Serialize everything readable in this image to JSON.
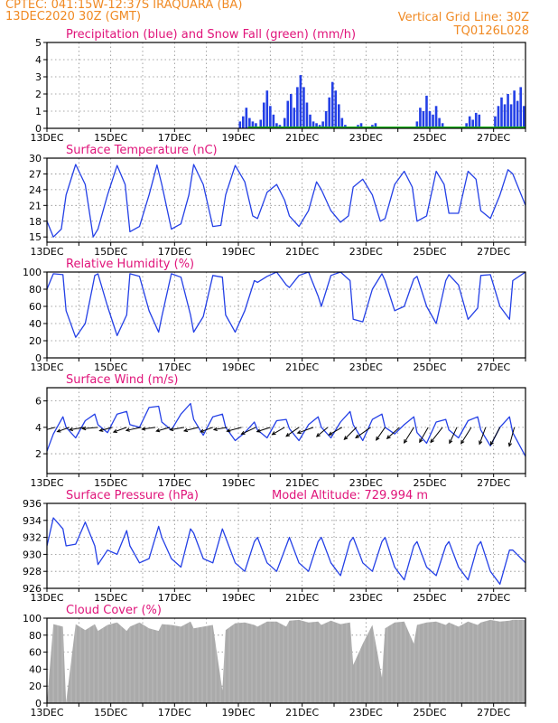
{
  "header": {
    "line1": "CPTEC:   041:15W-12:37S  IRAQUARA (BA)",
    "line2": "13DEC2020 30Z (GMT)",
    "grid_note": "Vertical Grid Line: 30Z",
    "model_id": "TQ0126L028"
  },
  "colors": {
    "header": "#f08a24",
    "title": "#e0147a",
    "line": "#2440e6",
    "snow": "#18b418",
    "cloud": "#aaaaaa",
    "grid": "#8a8a8a"
  },
  "chart_data": [
    {
      "type": "bar",
      "title": "Precipitation (blue) and Snow Fall (green) (mm/h)",
      "ylim": [
        0,
        5
      ],
      "yticks": [
        "0",
        "1",
        "2",
        "3",
        "4",
        "5"
      ],
      "x_ticks": [
        "13DEC",
        "15DEC",
        "17DEC",
        "19DEC",
        "21DEC",
        "23DEC",
        "25DEC",
        "27DEC"
      ],
      "x_range_days": [
        0,
        15
      ],
      "series": [
        {
          "name": "Precipitation",
          "color": "#2440e6",
          "x": [
            6.05,
            6.15,
            6.25,
            6.35,
            6.45,
            6.55,
            6.7,
            6.8,
            6.9,
            7.0,
            7.1,
            7.2,
            7.3,
            7.45,
            7.55,
            7.65,
            7.75,
            7.85,
            7.95,
            8.05,
            8.15,
            8.25,
            8.35,
            8.45,
            8.55,
            8.65,
            8.75,
            8.85,
            8.95,
            9.05,
            9.15,
            9.25,
            9.35,
            9.45,
            9.55,
            9.65,
            9.75,
            9.85,
            10.2,
            10.3,
            11.6,
            11.7,
            11.8,
            11.9,
            12.0,
            12.1,
            12.2,
            12.3,
            12.4,
            13.15,
            13.25,
            13.35,
            13.45,
            13.55,
            14.05,
            14.15,
            14.25,
            14.35,
            14.45,
            14.55,
            14.65,
            14.75,
            14.85,
            14.95
          ],
          "values": [
            0.4,
            0.7,
            1.2,
            0.6,
            0.4,
            0.3,
            0.5,
            1.5,
            2.2,
            1.3,
            0.8,
            0.3,
            0.2,
            0.6,
            1.6,
            2.0,
            1.2,
            2.4,
            3.1,
            2.4,
            1.5,
            0.8,
            0.4,
            0.3,
            0.2,
            0.4,
            1.0,
            1.8,
            2.7,
            2.2,
            1.4,
            0.6,
            0.2,
            0.1,
            0.1,
            0.1,
            0.2,
            0.3,
            0.2,
            0.3,
            0.4,
            1.2,
            1.0,
            1.9,
            1.0,
            0.8,
            1.3,
            0.6,
            0.3,
            0.3,
            0.7,
            0.5,
            0.9,
            0.8,
            0.7,
            1.3,
            1.8,
            1.4,
            2.0,
            1.4,
            2.2,
            1.6,
            2.4,
            1.3
          ]
        },
        {
          "name": "Snow Fall",
          "color": "#18b418",
          "x": [],
          "values": []
        }
      ]
    },
    {
      "type": "line",
      "title": "Surface Temperature (nC)",
      "ylim": [
        14,
        30
      ],
      "yticks": [
        "15",
        "18",
        "21",
        "24",
        "27",
        "30"
      ],
      "x_ticks": [
        "13DEC",
        "15DEC",
        "17DEC",
        "19DEC",
        "21DEC",
        "23DEC",
        "25DEC",
        "27DEC"
      ],
      "x_range_days": [
        0,
        15
      ],
      "series": [
        {
          "name": "Temperature",
          "x": [
            0.0,
            0.2,
            0.45,
            0.6,
            0.9,
            1.2,
            1.45,
            1.6,
            1.9,
            2.2,
            2.45,
            2.6,
            2.9,
            3.2,
            3.45,
            3.6,
            3.9,
            4.2,
            4.45,
            4.6,
            4.9,
            5.2,
            5.45,
            5.6,
            5.9,
            6.2,
            6.45,
            6.6,
            6.9,
            7.2,
            7.45,
            7.6,
            7.9,
            8.2,
            8.45,
            8.6,
            8.9,
            9.2,
            9.45,
            9.6,
            9.9,
            10.2,
            10.45,
            10.6,
            10.9,
            11.2,
            11.45,
            11.6,
            11.9,
            12.2,
            12.45,
            12.6,
            12.9,
            13.2,
            13.45,
            13.6,
            13.9,
            14.2,
            14.45,
            14.6,
            15.0
          ],
          "values": [
            18.0,
            15.0,
            16.5,
            23.0,
            28.8,
            25.0,
            15.0,
            16.5,
            23.0,
            28.6,
            25.0,
            16.0,
            17.0,
            23.0,
            28.7,
            25.0,
            16.5,
            17.5,
            23.0,
            28.8,
            25.0,
            17.0,
            17.2,
            23.0,
            28.6,
            25.5,
            19.0,
            18.5,
            23.5,
            25.0,
            22.0,
            19.0,
            17.0,
            20.0,
            25.5,
            24.0,
            20.0,
            17.8,
            19.0,
            24.5,
            26.0,
            23.0,
            18.0,
            18.5,
            25.0,
            27.5,
            24.5,
            18.0,
            19.0,
            27.5,
            25.0,
            19.5,
            19.5,
            27.5,
            26.0,
            20.0,
            18.5,
            23.0,
            27.8,
            27.0,
            21.0
          ]
        }
      ]
    },
    {
      "type": "line",
      "title": "Relative Humidity (%)",
      "ylim": [
        0,
        100
      ],
      "yticks": [
        "0",
        "20",
        "40",
        "60",
        "80",
        "100"
      ],
      "x_ticks": [
        "13DEC",
        "15DEC",
        "17DEC",
        "19DEC",
        "21DEC",
        "23DEC",
        "25DEC",
        "27DEC"
      ],
      "x_range_days": [
        0,
        15
      ],
      "series": [
        {
          "name": "Humidity",
          "x": [
            0.0,
            0.2,
            0.5,
            0.6,
            0.9,
            1.2,
            1.5,
            1.6,
            1.9,
            2.2,
            2.5,
            2.6,
            2.9,
            3.2,
            3.5,
            3.6,
            3.9,
            4.2,
            4.5,
            4.6,
            4.9,
            5.2,
            5.5,
            5.6,
            5.9,
            6.2,
            6.5,
            6.6,
            6.9,
            7.2,
            7.5,
            7.6,
            7.9,
            8.2,
            8.5,
            8.6,
            8.9,
            9.2,
            9.5,
            9.6,
            9.9,
            10.2,
            10.5,
            10.6,
            10.9,
            11.2,
            11.5,
            11.6,
            11.9,
            12.2,
            12.5,
            12.6,
            12.9,
            13.2,
            13.5,
            13.6,
            13.9,
            14.2,
            14.5,
            14.6,
            15.0
          ],
          "values": [
            80.0,
            98.0,
            97.0,
            55.0,
            24.0,
            40.0,
            96.0,
            98.0,
            60.0,
            26.0,
            50.0,
            98.0,
            95.0,
            55.0,
            30.0,
            48.0,
            98.0,
            94.0,
            50.0,
            30.0,
            48.0,
            96.0,
            94.0,
            50.0,
            30.0,
            55.0,
            90.0,
            88.0,
            95.0,
            100.0,
            85.0,
            82.0,
            96.0,
            100.0,
            72.0,
            60.0,
            96.0,
            100.0,
            90.0,
            45.0,
            42.0,
            80.0,
            98.0,
            90.0,
            55.0,
            60.0,
            92.0,
            95.0,
            60.0,
            40.0,
            90.0,
            97.0,
            85.0,
            45.0,
            58.0,
            96.0,
            97.0,
            60.0,
            45.0,
            90.0,
            100.0
          ]
        }
      ]
    },
    {
      "type": "line",
      "title": "Surface Wind (m/s)",
      "ylim": [
        0.5,
        7
      ],
      "yticks": [
        "2",
        "4",
        "6"
      ],
      "x_ticks": [
        "13DEC",
        "15DEC",
        "17DEC",
        "19DEC",
        "21DEC",
        "23DEC",
        "25DEC",
        "27DEC"
      ],
      "x_range_days": [
        0,
        15
      ],
      "series": [
        {
          "name": "Wind speed",
          "x": [
            0.0,
            0.2,
            0.5,
            0.6,
            0.9,
            1.2,
            1.5,
            1.6,
            1.9,
            2.2,
            2.5,
            2.6,
            2.9,
            3.2,
            3.5,
            3.6,
            3.9,
            4.2,
            4.5,
            4.6,
            4.9,
            5.2,
            5.5,
            5.6,
            5.9,
            6.2,
            6.5,
            6.6,
            6.9,
            7.2,
            7.5,
            7.6,
            7.9,
            8.2,
            8.5,
            8.6,
            8.9,
            9.2,
            9.5,
            9.6,
            9.9,
            10.2,
            10.5,
            10.6,
            10.9,
            11.2,
            11.5,
            11.6,
            11.9,
            12.2,
            12.5,
            12.6,
            12.9,
            13.2,
            13.5,
            13.6,
            13.9,
            14.2,
            14.5,
            14.6,
            15.0
          ],
          "values": [
            2.2,
            3.5,
            4.8,
            4.0,
            3.2,
            4.5,
            5.0,
            4.2,
            3.6,
            5.0,
            5.2,
            4.2,
            4.0,
            5.5,
            5.6,
            4.4,
            3.8,
            5.0,
            5.8,
            4.6,
            3.4,
            4.8,
            5.0,
            4.0,
            3.0,
            3.6,
            4.4,
            3.8,
            3.2,
            4.5,
            4.6,
            3.9,
            3.0,
            4.2,
            4.8,
            4.0,
            3.2,
            4.4,
            5.2,
            4.2,
            3.0,
            4.6,
            5.0,
            4.0,
            3.5,
            4.2,
            4.8,
            3.6,
            2.8,
            4.4,
            4.6,
            3.8,
            3.2,
            4.5,
            4.8,
            3.8,
            2.6,
            4.0,
            4.8,
            3.6,
            1.8
          ]
        }
      ],
      "wind_barbs": {
        "x": [
          0.25,
          0.7,
          1.15,
          1.6,
          2.05,
          2.5,
          2.95,
          3.4,
          3.85,
          4.3,
          4.75,
          5.2,
          5.65,
          6.1,
          6.55,
          7.0,
          7.45,
          7.9,
          8.35,
          8.8,
          9.25,
          9.7,
          10.15,
          10.6,
          11.05,
          11.5,
          11.95,
          12.4,
          12.85,
          13.3,
          13.75,
          14.2,
          14.65
        ],
        "speed": [
          3.4,
          3.2,
          3.6,
          3.9,
          3.3,
          3.5,
          3.8,
          3.4,
          3.5,
          3.6,
          3.7,
          3.3,
          3.4,
          3.8,
          4.0,
          3.5,
          3.6,
          3.9,
          4.2,
          3.6,
          3.8,
          4.3,
          4.6,
          3.9,
          4.2,
          4.6,
          4.3,
          4.8,
          4.4,
          4.8,
          4.5,
          5.0,
          4.9
        ],
        "angle_deg": [
          195,
          200,
          190,
          185,
          195,
          200,
          192,
          188,
          196,
          190,
          194,
          200,
          190,
          195,
          205,
          198,
          210,
          215,
          200,
          220,
          210,
          225,
          215,
          235,
          222,
          238,
          240,
          232,
          245,
          238,
          250,
          242,
          255
        ]
      }
    },
    {
      "type": "line",
      "title": "Surface Pressure (hPa)",
      "subtitle": "Model Altitude: 729.994  m",
      "ylim": [
        926,
        936
      ],
      "yticks": [
        "926",
        "928",
        "930",
        "932",
        "934",
        "936"
      ],
      "x_ticks": [
        "13DEC",
        "15DEC",
        "17DEC",
        "19DEC",
        "21DEC",
        "23DEC",
        "25DEC",
        "27DEC"
      ],
      "x_range_days": [
        0,
        15
      ],
      "series": [
        {
          "name": "Pressure",
          "x": [
            0.0,
            0.2,
            0.5,
            0.6,
            0.9,
            1.2,
            1.5,
            1.6,
            1.9,
            2.2,
            2.5,
            2.6,
            2.9,
            3.2,
            3.5,
            3.6,
            3.9,
            4.2,
            4.5,
            4.6,
            4.9,
            5.2,
            5.5,
            5.6,
            5.9,
            6.2,
            6.5,
            6.6,
            6.9,
            7.2,
            7.5,
            7.6,
            7.9,
            8.2,
            8.5,
            8.6,
            8.9,
            9.2,
            9.5,
            9.6,
            9.9,
            10.2,
            10.5,
            10.6,
            10.9,
            11.2,
            11.5,
            11.6,
            11.9,
            12.2,
            12.5,
            12.6,
            12.9,
            13.2,
            13.5,
            13.6,
            13.9,
            14.2,
            14.5,
            14.6,
            15.0
          ],
          "values": [
            931.0,
            934.3,
            933.0,
            931.0,
            931.2,
            933.8,
            931.0,
            928.8,
            930.5,
            930.0,
            932.8,
            931.0,
            929.0,
            929.5,
            933.3,
            932.0,
            929.5,
            928.5,
            933.0,
            932.5,
            929.5,
            929.0,
            933.0,
            932.0,
            929.0,
            928.0,
            931.5,
            932.0,
            929.0,
            928.0,
            931.0,
            932.0,
            929.0,
            928.0,
            931.5,
            932.0,
            929.0,
            927.5,
            931.5,
            932.0,
            929.0,
            928.0,
            931.5,
            932.0,
            928.5,
            927.0,
            931.0,
            931.5,
            928.5,
            927.5,
            931.0,
            931.5,
            928.5,
            927.0,
            931.0,
            931.5,
            928.0,
            926.5,
            930.5,
            930.5,
            929.0
          ]
        }
      ]
    },
    {
      "type": "area",
      "title": "Cloud Cover (%)",
      "ylim": [
        0,
        100
      ],
      "yticks": [
        "0",
        "20",
        "40",
        "60",
        "80",
        "100"
      ],
      "x_ticks": [
        "13DEC",
        "15DEC",
        "17DEC",
        "19DEC",
        "21DEC",
        "23DEC",
        "25DEC",
        "27DEC"
      ],
      "x_range_days": [
        0,
        15
      ],
      "series": [
        {
          "name": "Cloud cover",
          "x": [
            0.0,
            0.2,
            0.5,
            0.6,
            0.9,
            1.2,
            1.5,
            1.6,
            1.9,
            2.2,
            2.5,
            2.6,
            2.9,
            3.2,
            3.5,
            3.6,
            3.9,
            4.2,
            4.5,
            4.6,
            4.9,
            5.2,
            5.5,
            5.6,
            5.9,
            6.2,
            6.5,
            6.6,
            6.9,
            7.2,
            7.5,
            7.6,
            7.9,
            8.2,
            8.5,
            8.6,
            8.9,
            9.2,
            9.5,
            9.6,
            9.9,
            10.2,
            10.5,
            10.6,
            10.9,
            11.2,
            11.5,
            11.6,
            11.9,
            12.2,
            12.5,
            12.6,
            12.9,
            13.2,
            13.5,
            13.6,
            13.9,
            14.2,
            14.5,
            14.6,
            15.0
          ],
          "values": [
            0.0,
            93.0,
            90.0,
            1.0,
            93.0,
            86.0,
            93.0,
            85.0,
            92.0,
            95.0,
            85.0,
            90.0,
            95.0,
            88.0,
            85.0,
            93.0,
            92.0,
            90.0,
            96.0,
            88.0,
            90.0,
            92.0,
            15.0,
            86.0,
            94.0,
            95.0,
            92.0,
            90.0,
            96.0,
            96.0,
            90.0,
            97.0,
            98.0,
            95.0,
            96.0,
            92.0,
            97.0,
            93.0,
            95.0,
            45.0,
            70.0,
            92.0,
            30.0,
            88.0,
            95.0,
            96.0,
            70.0,
            92.0,
            95.0,
            96.0,
            92.0,
            95.0,
            90.0,
            96.0,
            92.0,
            95.0,
            98.0,
            96.0,
            97.0,
            98.0,
            98.0
          ]
        }
      ]
    }
  ]
}
